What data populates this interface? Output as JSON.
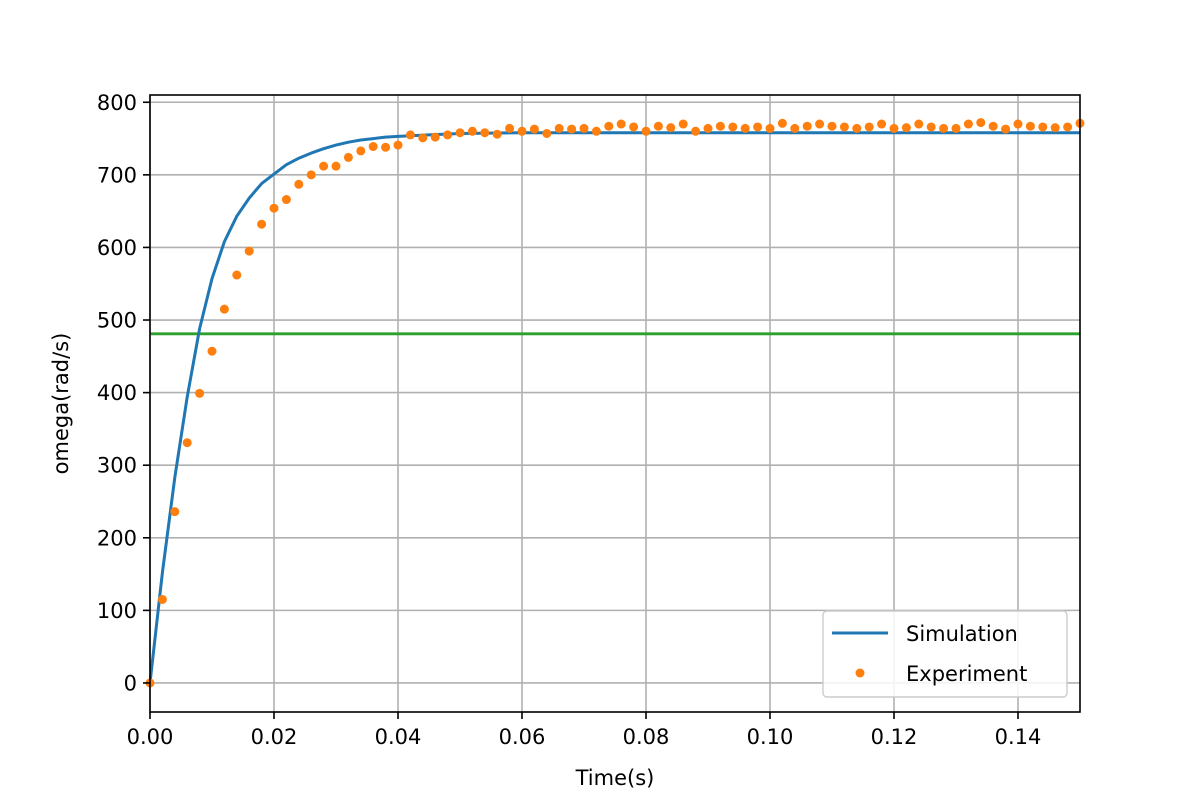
{
  "chart_data": {
    "type": "line",
    "title": "",
    "xlabel": "Time(s)",
    "ylabel": "omega(rad/s)",
    "xlim": [
      0,
      0.15
    ],
    "ylim": [
      -40,
      810
    ],
    "x_ticks": [
      0.0,
      0.02,
      0.04,
      0.06,
      0.08,
      0.1,
      0.12,
      0.14
    ],
    "x_tick_labels": [
      "0.00",
      "0.02",
      "0.04",
      "0.06",
      "0.08",
      "0.10",
      "0.12",
      "0.14"
    ],
    "y_ticks": [
      0,
      100,
      200,
      300,
      400,
      500,
      600,
      700,
      800
    ],
    "y_tick_labels": [
      "0",
      "100",
      "200",
      "300",
      "400",
      "500",
      "600",
      "700",
      "800"
    ],
    "grid": true,
    "legend_position": "bottom-right",
    "series": [
      {
        "name": "Simulation",
        "kind": "line",
        "color": "#1f77b4",
        "x": [
          0,
          0.002,
          0.004,
          0.006,
          0.008,
          0.01,
          0.012,
          0.014,
          0.016,
          0.018,
          0.02,
          0.022,
          0.024,
          0.026,
          0.028,
          0.03,
          0.032,
          0.034,
          0.036,
          0.038,
          0.04,
          0.045,
          0.05,
          0.06,
          0.07,
          0.08,
          0.1,
          0.12,
          0.15
        ],
        "values": [
          0,
          152,
          283,
          394,
          488,
          557,
          608,
          643,
          668,
          688,
          701,
          714,
          723,
          730,
          736,
          741,
          745,
          748,
          750,
          752,
          753,
          755,
          757,
          758,
          758,
          758,
          758,
          758,
          758
        ]
      },
      {
        "name": "Experiment",
        "kind": "scatter",
        "color": "#ff7f0e",
        "x": [
          0.0,
          0.002,
          0.004,
          0.006,
          0.008,
          0.01,
          0.012,
          0.014,
          0.016,
          0.018,
          0.02,
          0.022,
          0.024,
          0.026,
          0.028,
          0.03,
          0.032,
          0.034,
          0.036,
          0.038,
          0.04,
          0.042,
          0.044,
          0.046,
          0.048,
          0.05,
          0.052,
          0.054,
          0.056,
          0.058,
          0.06,
          0.062,
          0.064,
          0.066,
          0.068,
          0.07,
          0.072,
          0.074,
          0.076,
          0.078,
          0.08,
          0.082,
          0.084,
          0.086,
          0.088,
          0.09,
          0.092,
          0.094,
          0.096,
          0.098,
          0.1,
          0.102,
          0.104,
          0.106,
          0.108,
          0.11,
          0.112,
          0.114,
          0.116,
          0.118,
          0.12,
          0.122,
          0.124,
          0.126,
          0.128,
          0.13,
          0.132,
          0.134,
          0.136,
          0.138,
          0.14,
          0.142,
          0.144,
          0.146,
          0.148,
          0.15
        ],
        "values": [
          0,
          115,
          236,
          331,
          399,
          457,
          515,
          562,
          595,
          632,
          654,
          666,
          687,
          700,
          712,
          712,
          724,
          733,
          739,
          738,
          741,
          755,
          751,
          752,
          755,
          758,
          760,
          758,
          756,
          764,
          760,
          763,
          757,
          764,
          763,
          764,
          760,
          767,
          770,
          766,
          760,
          767,
          765,
          770,
          760,
          764,
          767,
          766,
          764,
          766,
          764,
          771,
          764,
          767,
          770,
          767,
          766,
          764,
          766,
          770,
          764,
          765,
          770,
          766,
          764,
          764,
          770,
          772,
          767,
          763,
          770,
          767,
          766,
          765,
          766,
          771
        ]
      },
      {
        "name": "",
        "kind": "hline",
        "color": "#2ca02c",
        "y": 481
      }
    ]
  }
}
